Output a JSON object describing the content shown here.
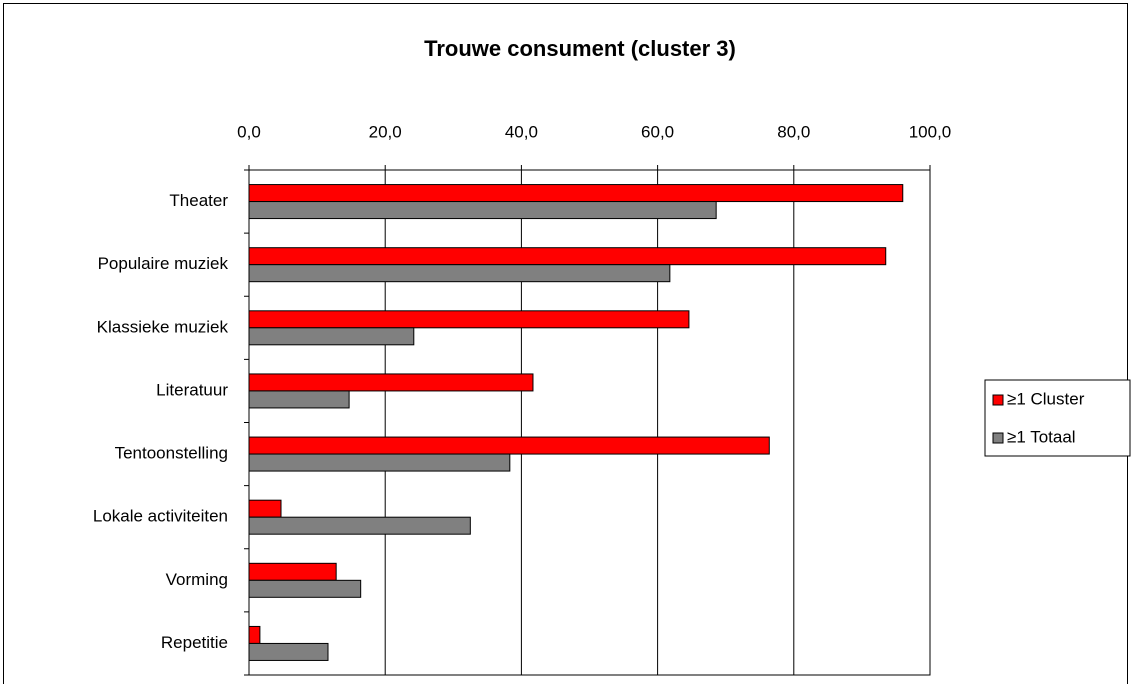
{
  "chart_data": {
    "type": "hbar",
    "title": "Trouwe consument (cluster 3)",
    "categories": [
      "Theater",
      "Populaire muziek",
      "Klassieke muziek",
      "Literatuur",
      "Tentoonstelling",
      "Lokale activiteiten",
      "Vorming",
      "Repetitie"
    ],
    "series": [
      {
        "name": "≥1 Cluster",
        "color": "#ff0000",
        "values": [
          96.0,
          93.5,
          64.6,
          41.7,
          76.4,
          4.7,
          12.8,
          1.6
        ]
      },
      {
        "name": "≥1 Totaal",
        "color": "#808080",
        "values": [
          68.6,
          61.8,
          24.2,
          14.7,
          38.3,
          32.5,
          16.4,
          11.6
        ]
      }
    ],
    "xlim": [
      0,
      100
    ],
    "xticks": [
      {
        "value": 0,
        "label": "0,0"
      },
      {
        "value": 20,
        "label": "20,0"
      },
      {
        "value": 40,
        "label": "40,0"
      },
      {
        "value": 60,
        "label": "60,0"
      },
      {
        "value": 80,
        "label": "80,0"
      },
      {
        "value": 100,
        "label": "100,0"
      }
    ],
    "grid": true,
    "legend": "right"
  }
}
